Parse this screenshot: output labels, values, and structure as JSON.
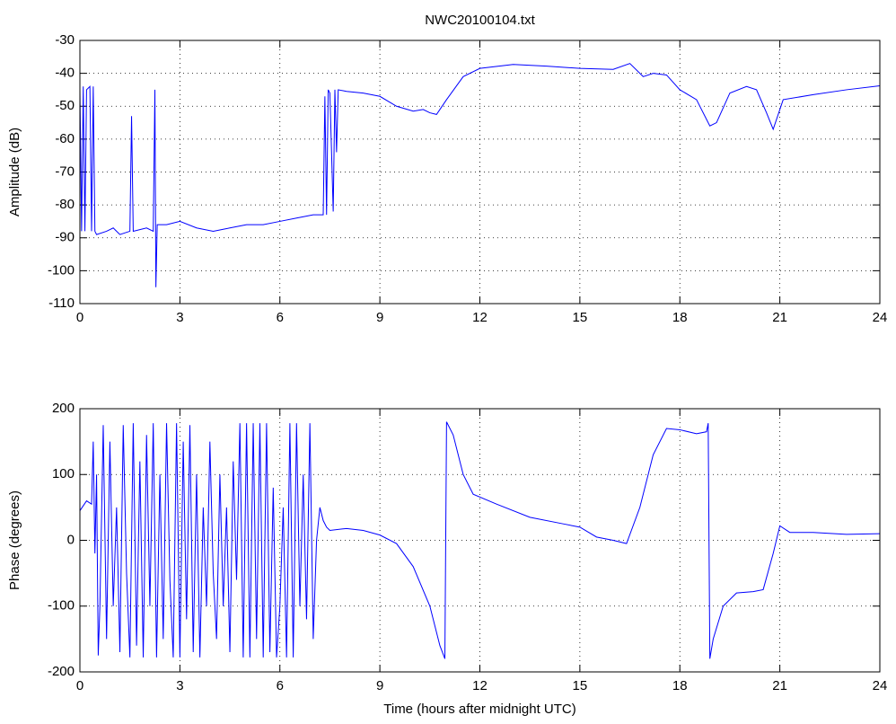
{
  "chart_data": [
    {
      "type": "line",
      "title": "NWC20100104.txt",
      "ylabel": "Amplitude (dB)",
      "grid": true,
      "xlim": [
        0,
        24
      ],
      "xticks": [
        0,
        3,
        6,
        9,
        12,
        15,
        18,
        21,
        24
      ],
      "ylim": [
        -110,
        -30
      ],
      "yticks": [
        -110,
        -100,
        -90,
        -80,
        -70,
        -60,
        -50,
        -40,
        -30
      ],
      "series": [
        {
          "color": "#0000ff",
          "x": [
            0,
            0.05,
            0.1,
            0.15,
            0.2,
            0.3,
            0.35,
            0.4,
            0.45,
            0.5,
            0.8,
            1.0,
            1.2,
            1.5,
            1.55,
            1.6,
            2.0,
            2.2,
            2.25,
            2.28,
            2.32,
            2.6,
            3.0,
            3.5,
            4.0,
            4.5,
            5.0,
            5.5,
            6.0,
            6.5,
            7.0,
            7.3,
            7.35,
            7.4,
            7.45,
            7.5,
            7.6,
            7.65,
            7.7,
            7.75,
            8.0,
            8.5,
            9.0,
            9.5,
            10.0,
            10.3,
            10.5,
            10.7,
            11.0,
            11.5,
            12,
            13,
            14,
            15,
            16,
            16.5,
            16.9,
            17.2,
            17.6,
            18,
            18.5,
            18.9,
            19.1,
            19.5,
            20,
            20.3,
            20.6,
            20.8,
            21.1,
            22,
            23,
            24
          ],
          "values": [
            -45,
            -88,
            -44,
            -88,
            -45,
            -44,
            -88,
            -44,
            -88,
            -89,
            -88,
            -87,
            -89,
            -88,
            -53,
            -88,
            -87,
            -88,
            -45,
            -105,
            -86,
            -86,
            -85,
            -87,
            -88,
            -87,
            -86,
            -86,
            -85,
            -84,
            -83,
            -83,
            -47,
            -83,
            -45,
            -46,
            -82,
            -45,
            -64,
            -45,
            -45.5,
            -46,
            -47,
            -50,
            -51.5,
            -51,
            -52,
            -52.5,
            -48,
            -41,
            -38.5,
            -37.3,
            -37.8,
            -38.5,
            -38.8,
            -37,
            -41,
            -40,
            -40.5,
            -45,
            -48,
            -56,
            -55,
            -46,
            -44,
            -45,
            -52,
            -57,
            -48,
            -46.5,
            -45,
            -43.8
          ]
        }
      ]
    },
    {
      "type": "line",
      "ylabel": "Phase (degrees)",
      "xlabel": "Time (hours after midnight UTC)",
      "grid": true,
      "xlim": [
        0,
        24
      ],
      "xticks": [
        0,
        3,
        6,
        9,
        12,
        15,
        18,
        21,
        24
      ],
      "ylim": [
        -200,
        200
      ],
      "yticks": [
        -200,
        -100,
        0,
        100,
        200
      ],
      "series": [
        {
          "color": "#0000ff",
          "x": [
            0,
            0.2,
            0.35,
            0.4,
            0.45,
            0.5,
            0.55,
            0.6,
            0.7,
            0.8,
            0.9,
            1.0,
            1.1,
            1.2,
            1.3,
            1.4,
            1.5,
            1.6,
            1.7,
            1.8,
            1.9,
            2.0,
            2.1,
            2.2,
            2.3,
            2.4,
            2.5,
            2.6,
            2.7,
            2.8,
            2.9,
            3.0,
            3.1,
            3.2,
            3.3,
            3.4,
            3.5,
            3.6,
            3.7,
            3.8,
            3.9,
            4.0,
            4.1,
            4.2,
            4.3,
            4.4,
            4.5,
            4.6,
            4.7,
            4.8,
            4.9,
            5.0,
            5.1,
            5.2,
            5.3,
            5.4,
            5.5,
            5.6,
            5.7,
            5.8,
            5.9,
            6.0,
            6.1,
            6.2,
            6.3,
            6.4,
            6.5,
            6.6,
            6.7,
            6.8,
            6.9,
            7.0,
            7.1,
            7.2,
            7.3,
            7.4,
            7.5,
            8,
            8.5,
            9,
            9.5,
            10,
            10.5,
            10.8,
            10.95,
            11.0,
            11.2,
            11.5,
            11.8,
            12.5,
            13.5,
            14.5,
            15,
            15.5,
            16,
            16.4,
            16.8,
            17.2,
            17.6,
            18,
            18.5,
            18.8,
            18.85,
            18.9,
            19,
            19.3,
            19.7,
            20.2,
            20.5,
            20.8,
            21.0,
            21.3,
            22,
            23,
            24
          ],
          "values": [
            45,
            60,
            55,
            150,
            -20,
            100,
            -175,
            -100,
            175,
            -150,
            150,
            -100,
            50,
            -170,
            175,
            -50,
            -178,
            178,
            -160,
            120,
            -178,
            160,
            -100,
            178,
            -178,
            100,
            -150,
            178,
            -60,
            -178,
            178,
            -178,
            150,
            -120,
            175,
            -170,
            100,
            -178,
            50,
            -100,
            150,
            -50,
            -150,
            100,
            -100,
            50,
            -170,
            120,
            -60,
            178,
            -178,
            178,
            -178,
            178,
            -150,
            178,
            -178,
            178,
            -170,
            80,
            -178,
            -100,
            50,
            -178,
            178,
            -178,
            178,
            -100,
            100,
            -120,
            178,
            -150,
            0,
            50,
            30,
            20,
            15,
            18,
            15,
            8,
            -5,
            -40,
            -100,
            -160,
            -180,
            180,
            160,
            100,
            70,
            55,
            35,
            25,
            20,
            5,
            0,
            -5,
            50,
            130,
            170,
            168,
            162,
            165,
            178,
            -180,
            -150,
            -100,
            -80,
            -78,
            -75,
            -20,
            22,
            12,
            12,
            9,
            10
          ]
        }
      ]
    }
  ]
}
